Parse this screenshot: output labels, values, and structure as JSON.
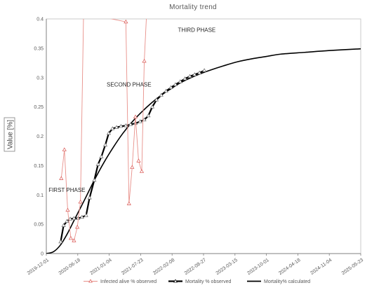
{
  "chart_data": {
    "type": "line",
    "title": "Mortality trend",
    "ylabel": "Value [%]",
    "xlabel": "",
    "ylim": [
      0,
      0.4
    ],
    "yticks": [
      0,
      0.05,
      0.1,
      0.15,
      0.2,
      0.25,
      0.3,
      0.35,
      0.4
    ],
    "ytick_labels": [
      "0",
      "0.05",
      "0.1",
      "0.15",
      "0.2",
      "0.25",
      "0.3",
      "0.35",
      "0.4"
    ],
    "xlim": [
      "2019-12-01",
      "2025-05-23"
    ],
    "xticks": [
      "2019-12-01",
      "2020-06-18",
      "2021-01-04",
      "2021-07-23",
      "2022-02-08",
      "2022-08-27",
      "2023-03-15",
      "2023-10-01",
      "2024-04-18",
      "2024-11-04",
      "2025-05-23"
    ],
    "grid": {
      "x": false,
      "y": false
    },
    "legend_position": "bottom",
    "annotations": [
      {
        "text": "FIRST PHASE",
        "x": "2020-04-10",
        "y": 0.105
      },
      {
        "text": "SECOND PHASE",
        "x": "2021-05-10",
        "y": 0.285
      },
      {
        "text": "THIRD PHASE",
        "x": "2022-07-15",
        "y": 0.378
      }
    ],
    "series": [
      {
        "name": "Infected alive % observed",
        "color": "#e8908a",
        "marker": "triangle",
        "points": [
          [
            "2020-03-05",
            0.128
          ],
          [
            "2020-03-25",
            0.177
          ],
          [
            "2020-04-15",
            0.074
          ],
          [
            "2020-05-05",
            0.026
          ],
          [
            "2020-05-25",
            0.022
          ],
          [
            "2020-06-15",
            0.045
          ],
          [
            "2020-07-05",
            0.088
          ],
          [
            "2020-07-25",
            0.41
          ],
          [
            "2021-04-20",
            0.395
          ],
          [
            "2021-05-10",
            0.085
          ],
          [
            "2021-05-30",
            0.147
          ],
          [
            "2021-06-20",
            0.233
          ],
          [
            "2021-07-10",
            0.158
          ],
          [
            "2021-07-30",
            0.14
          ],
          [
            "2021-08-15",
            0.328
          ],
          [
            "2021-08-30",
            0.41
          ]
        ]
      },
      {
        "name": "Mortality % observed",
        "color": "#000000",
        "marker": "triangle",
        "points": [
          [
            "2020-03-01",
            0.02
          ],
          [
            "2020-03-20",
            0.048
          ],
          [
            "2020-04-10",
            0.055
          ],
          [
            "2020-05-01",
            0.059
          ],
          [
            "2020-05-25",
            0.06
          ],
          [
            "2020-06-20",
            0.06
          ],
          [
            "2020-07-15",
            0.062
          ],
          [
            "2020-08-10",
            0.065
          ],
          [
            "2020-09-01",
            0.095
          ],
          [
            "2020-10-01",
            0.125
          ],
          [
            "2020-10-25",
            0.152
          ],
          [
            "2020-11-15",
            0.165
          ],
          [
            "2020-12-10",
            0.185
          ],
          [
            "2021-01-01",
            0.205
          ],
          [
            "2021-01-25",
            0.213
          ],
          [
            "2021-02-20",
            0.215
          ],
          [
            "2021-03-20",
            0.217
          ],
          [
            "2021-04-20",
            0.218
          ],
          [
            "2021-05-20",
            0.22
          ],
          [
            "2021-06-20",
            0.222
          ],
          [
            "2021-07-20",
            0.225
          ],
          [
            "2021-08-15",
            0.228
          ],
          [
            "2021-09-10",
            0.235
          ],
          [
            "2021-10-05",
            0.25
          ],
          [
            "2021-11-01",
            0.262
          ],
          [
            "2021-12-01",
            0.27
          ],
          [
            "2022-01-01",
            0.277
          ],
          [
            "2022-02-01",
            0.283
          ],
          [
            "2022-03-01",
            0.288
          ],
          [
            "2022-04-01",
            0.293
          ],
          [
            "2022-05-01",
            0.298
          ],
          [
            "2022-06-01",
            0.302
          ],
          [
            "2022-07-01",
            0.305
          ],
          [
            "2022-08-01",
            0.308
          ],
          [
            "2022-09-01",
            0.312
          ]
        ]
      },
      {
        "name": "Mortality% calculated",
        "color": "#000000",
        "marker": "none",
        "points": [
          [
            "2019-12-01",
            0.0
          ],
          [
            "2020-01-15",
            0.003
          ],
          [
            "2020-03-01",
            0.015
          ],
          [
            "2020-04-15",
            0.035
          ],
          [
            "2020-06-01",
            0.06
          ],
          [
            "2020-08-01",
            0.092
          ],
          [
            "2020-10-01",
            0.125
          ],
          [
            "2020-12-01",
            0.155
          ],
          [
            "2021-02-01",
            0.182
          ],
          [
            "2021-04-01",
            0.205
          ],
          [
            "2021-06-01",
            0.225
          ],
          [
            "2021-08-01",
            0.242
          ],
          [
            "2021-10-01",
            0.257
          ],
          [
            "2021-12-01",
            0.27
          ],
          [
            "2022-02-01",
            0.281
          ],
          [
            "2022-04-01",
            0.291
          ],
          [
            "2022-06-01",
            0.299
          ],
          [
            "2022-08-01",
            0.306
          ],
          [
            "2022-10-01",
            0.312
          ],
          [
            "2023-01-01",
            0.32
          ],
          [
            "2023-04-01",
            0.327
          ],
          [
            "2023-07-01",
            0.332
          ],
          [
            "2023-10-01",
            0.336
          ],
          [
            "2024-01-01",
            0.34
          ],
          [
            "2024-06-01",
            0.343
          ],
          [
            "2024-11-01",
            0.346
          ],
          [
            "2025-05-23",
            0.349
          ]
        ]
      }
    ]
  }
}
